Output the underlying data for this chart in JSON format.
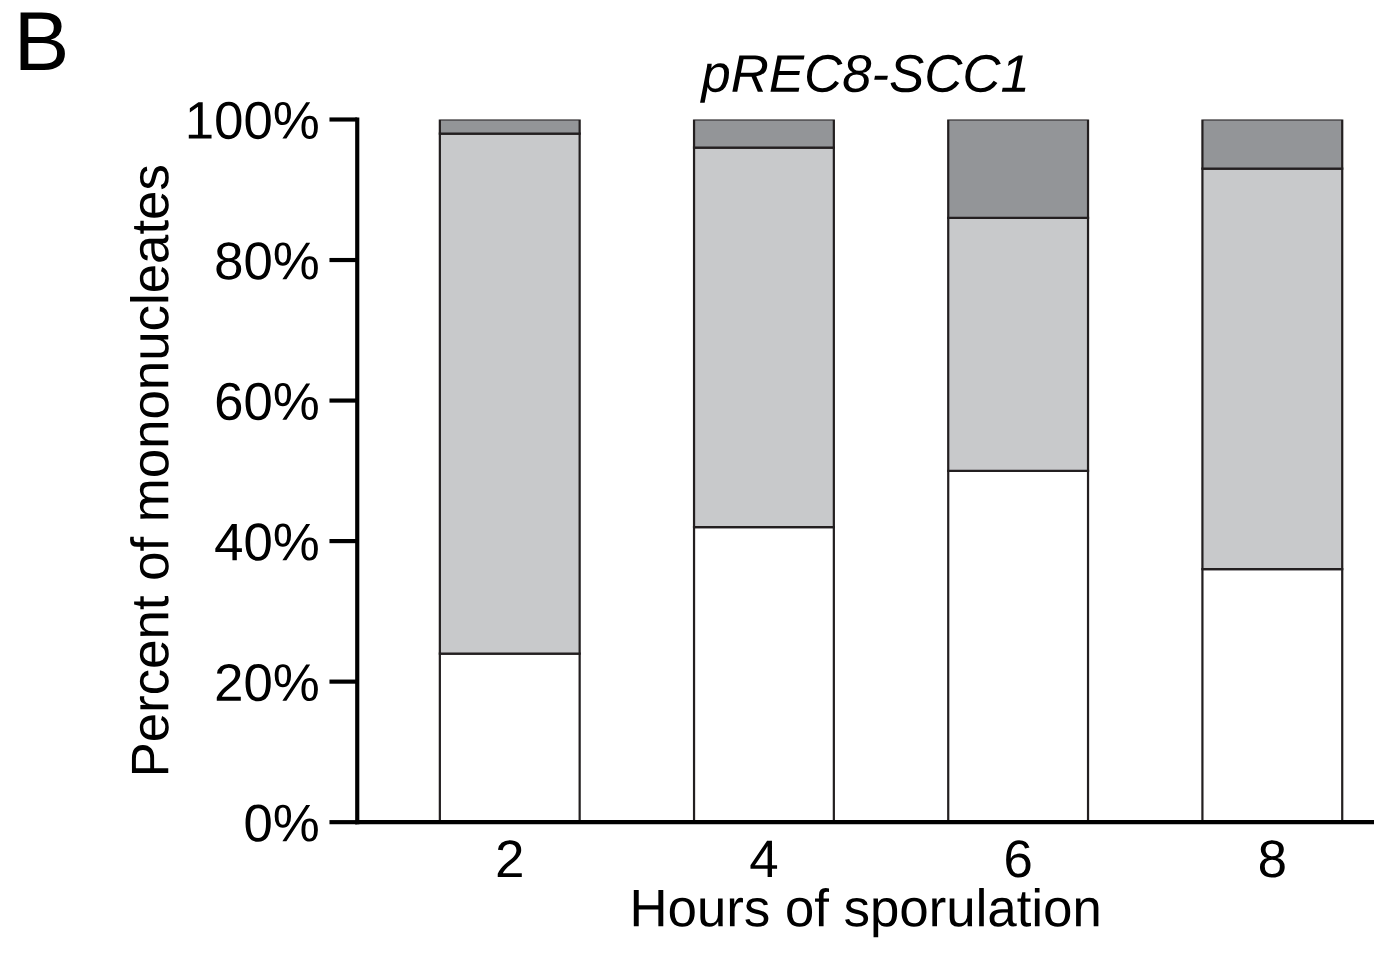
{
  "chart_data": {
    "type": "bar",
    "stacked": true,
    "title": "pREC8-SCC1",
    "xlabel": "Hours of sporulation",
    "ylabel": "Percent of mononucleates",
    "categories": [
      "2",
      "4",
      "6",
      "8"
    ],
    "series": [
      {
        "color": "#ffffff",
        "values": [
          24,
          42,
          50,
          36
        ]
      },
      {
        "color": "#c8c9cb",
        "values": [
          74,
          54,
          36,
          57
        ]
      },
      {
        "color": "#939598",
        "values": [
          2,
          4,
          14,
          7
        ]
      }
    ],
    "ylim": [
      0,
      100
    ],
    "yticks": [
      {
        "value": 0,
        "label": "0%"
      },
      {
        "value": 20,
        "label": "20%"
      },
      {
        "value": 40,
        "label": "40%"
      },
      {
        "value": 60,
        "label": "60%"
      },
      {
        "value": 80,
        "label": "80%"
      },
      {
        "value": 100,
        "label": "100%"
      }
    ],
    "grid": false,
    "legend": false,
    "annotations": [
      "B"
    ]
  }
}
